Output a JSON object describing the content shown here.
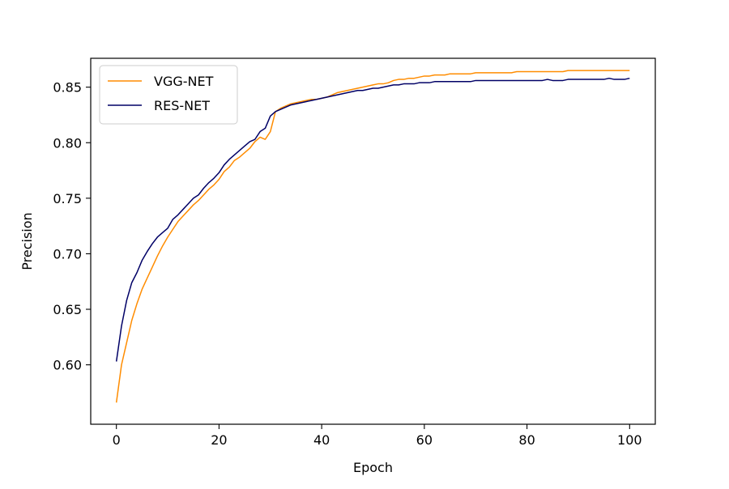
{
  "chart_data": {
    "type": "line",
    "title": "",
    "xlabel": "Epoch",
    "ylabel": "Precision",
    "xlim": [
      -5,
      105
    ],
    "ylim": [
      0.5465,
      0.876
    ],
    "xticks": [
      0,
      20,
      40,
      60,
      80,
      100
    ],
    "yticks": [
      0.6,
      0.65,
      0.7,
      0.75,
      0.8,
      0.85
    ],
    "xtick_labels": [
      "0",
      "20",
      "40",
      "60",
      "80",
      "100"
    ],
    "ytick_labels": [
      "0.60",
      "0.65",
      "0.70",
      "0.75",
      "0.80",
      "0.85"
    ],
    "grid": false,
    "legend_position": "top-left",
    "series": [
      {
        "name": "VGG-NET",
        "color": "#ff8c00",
        "x": [
          0,
          1,
          2,
          3,
          4,
          5,
          6,
          7,
          8,
          9,
          10,
          11,
          12,
          13,
          14,
          15,
          16,
          17,
          18,
          19,
          20,
          21,
          22,
          23,
          24,
          25,
          26,
          27,
          28,
          29,
          30,
          31,
          32,
          33,
          34,
          35,
          36,
          37,
          38,
          39,
          40,
          41,
          42,
          43,
          44,
          45,
          46,
          47,
          48,
          49,
          50,
          51,
          52,
          53,
          54,
          55,
          56,
          57,
          58,
          59,
          60,
          61,
          62,
          63,
          64,
          65,
          66,
          67,
          68,
          69,
          70,
          71,
          72,
          73,
          74,
          75,
          76,
          77,
          78,
          79,
          80,
          81,
          82,
          83,
          84,
          85,
          86,
          87,
          88,
          89,
          90,
          91,
          92,
          93,
          94,
          95,
          96,
          97,
          98,
          99,
          100
        ],
        "values": [
          0.566,
          0.6,
          0.62,
          0.64,
          0.655,
          0.668,
          0.678,
          0.688,
          0.698,
          0.707,
          0.715,
          0.722,
          0.729,
          0.734,
          0.739,
          0.744,
          0.748,
          0.753,
          0.758,
          0.762,
          0.767,
          0.774,
          0.778,
          0.784,
          0.787,
          0.791,
          0.795,
          0.801,
          0.805,
          0.803,
          0.81,
          0.828,
          0.831,
          0.833,
          0.835,
          0.836,
          0.837,
          0.838,
          0.839,
          0.839,
          0.84,
          0.841,
          0.843,
          0.845,
          0.846,
          0.847,
          0.848,
          0.849,
          0.85,
          0.851,
          0.852,
          0.853,
          0.853,
          0.854,
          0.856,
          0.857,
          0.857,
          0.858,
          0.858,
          0.859,
          0.86,
          0.86,
          0.861,
          0.861,
          0.861,
          0.862,
          0.862,
          0.862,
          0.862,
          0.862,
          0.863,
          0.863,
          0.863,
          0.863,
          0.863,
          0.863,
          0.863,
          0.863,
          0.864,
          0.864,
          0.864,
          0.864,
          0.864,
          0.864,
          0.864,
          0.864,
          0.864,
          0.864,
          0.865,
          0.865,
          0.865,
          0.865,
          0.865,
          0.865,
          0.865,
          0.865,
          0.865,
          0.865,
          0.865,
          0.865,
          0.865
        ]
      },
      {
        "name": "RES-NET",
        "color": "#000066",
        "x": [
          0,
          1,
          2,
          3,
          4,
          5,
          6,
          7,
          8,
          9,
          10,
          11,
          12,
          13,
          14,
          15,
          16,
          17,
          18,
          19,
          20,
          21,
          22,
          23,
          24,
          25,
          26,
          27,
          28,
          29,
          30,
          31,
          32,
          33,
          34,
          35,
          36,
          37,
          38,
          39,
          40,
          41,
          42,
          43,
          44,
          45,
          46,
          47,
          48,
          49,
          50,
          51,
          52,
          53,
          54,
          55,
          56,
          57,
          58,
          59,
          60,
          61,
          62,
          63,
          64,
          65,
          66,
          67,
          68,
          69,
          70,
          71,
          72,
          73,
          74,
          75,
          76,
          77,
          78,
          79,
          80,
          81,
          82,
          83,
          84,
          85,
          86,
          87,
          88,
          89,
          90,
          91,
          92,
          93,
          94,
          95,
          96,
          97,
          98,
          99,
          100
        ],
        "values": [
          0.603,
          0.635,
          0.658,
          0.674,
          0.683,
          0.694,
          0.702,
          0.709,
          0.715,
          0.719,
          0.723,
          0.731,
          0.735,
          0.74,
          0.745,
          0.75,
          0.753,
          0.759,
          0.764,
          0.768,
          0.773,
          0.78,
          0.785,
          0.789,
          0.793,
          0.797,
          0.801,
          0.803,
          0.81,
          0.813,
          0.824,
          0.828,
          0.83,
          0.832,
          0.834,
          0.835,
          0.836,
          0.837,
          0.838,
          0.839,
          0.84,
          0.841,
          0.842,
          0.843,
          0.844,
          0.845,
          0.846,
          0.847,
          0.847,
          0.848,
          0.849,
          0.849,
          0.85,
          0.851,
          0.852,
          0.852,
          0.853,
          0.853,
          0.853,
          0.854,
          0.854,
          0.854,
          0.855,
          0.855,
          0.855,
          0.855,
          0.855,
          0.855,
          0.855,
          0.855,
          0.856,
          0.856,
          0.856,
          0.856,
          0.856,
          0.856,
          0.856,
          0.856,
          0.856,
          0.856,
          0.856,
          0.856,
          0.856,
          0.856,
          0.857,
          0.856,
          0.856,
          0.856,
          0.857,
          0.857,
          0.857,
          0.857,
          0.857,
          0.857,
          0.857,
          0.857,
          0.858,
          0.857,
          0.857,
          0.857,
          0.858
        ]
      }
    ]
  }
}
